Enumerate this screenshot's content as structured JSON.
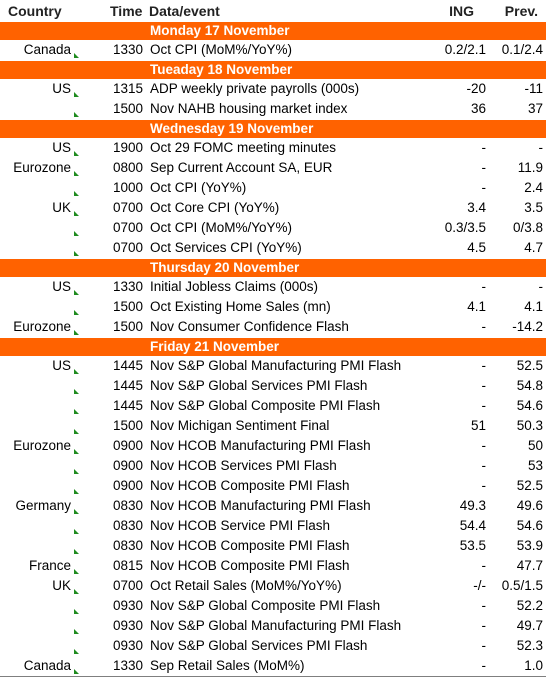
{
  "header": {
    "country": "Country",
    "time": "Time",
    "event": "Data/event",
    "ing": "ING",
    "prev": "Prev."
  },
  "theme": {
    "band_color": "#ff6200",
    "band_text": "#ffffff",
    "marker_color": "#1f8b1f"
  },
  "sections": [
    {
      "day": "Monday 17 November",
      "rows": [
        {
          "country": "Canada",
          "time": "1330",
          "event": "Oct CPI (MoM%/YoY%)",
          "ing": "0.2/2.1",
          "prev": "0.1/2.4"
        }
      ]
    },
    {
      "day": "Tueaday 18 November",
      "rows": [
        {
          "country": "US",
          "time": "1315",
          "event": "ADP weekly private payrolls (000s)",
          "ing": "-20",
          "prev": "-11"
        },
        {
          "country": "",
          "time": "1500",
          "event": "Nov NAHB housing market index",
          "ing": "36",
          "prev": "37"
        }
      ]
    },
    {
      "day": "Wednesday 19 November",
      "rows": [
        {
          "country": "US",
          "time": "1900",
          "event": "Oct 29 FOMC meeting minutes",
          "ing": "-",
          "prev": "-"
        },
        {
          "country": "Eurozone",
          "time": "0800",
          "event": "Sep Current Account SA, EUR",
          "ing": "-",
          "prev": "11.9"
        },
        {
          "country": "",
          "time": "1000",
          "event": "Oct CPI (YoY%)",
          "ing": "-",
          "prev": "2.4"
        },
        {
          "country": "UK",
          "time": "0700",
          "event": "Oct Core CPI (YoY%)",
          "ing": "3.4",
          "prev": "3.5"
        },
        {
          "country": "",
          "time": "0700",
          "event": "Oct CPI (MoM%/YoY%)",
          "ing": "0.3/3.5",
          "prev": "0/3.8"
        },
        {
          "country": "",
          "time": "0700",
          "event": "Oct Services CPI (YoY%)",
          "ing": "4.5",
          "prev": "4.7"
        }
      ]
    },
    {
      "day": "Thursday 20 November",
      "rows": [
        {
          "country": "US",
          "time": "1330",
          "event": "Initial Jobless Claims (000s)",
          "ing": "-",
          "prev": "-"
        },
        {
          "country": "",
          "time": "1500",
          "event": "Oct Existing Home Sales (mn)",
          "ing": "4.1",
          "prev": "4.1"
        },
        {
          "country": "Eurozone",
          "time": "1500",
          "event": "Nov Consumer Confidence Flash",
          "ing": "-",
          "prev": "-14.2"
        }
      ]
    },
    {
      "day": "Friday 21 November",
      "rows": [
        {
          "country": "US",
          "time": "1445",
          "event": "Nov S&P Global Manufacturing PMI Flash",
          "ing": "-",
          "prev": "52.5"
        },
        {
          "country": "",
          "time": "1445",
          "event": "Nov S&P Global Services PMI Flash",
          "ing": "-",
          "prev": "54.8"
        },
        {
          "country": "",
          "time": "1445",
          "event": "Nov S&P Global Composite PMI Flash",
          "ing": "-",
          "prev": "54.6"
        },
        {
          "country": "",
          "time": "1500",
          "event": "Nov Michigan Sentiment Final",
          "ing": "51",
          "prev": "50.3"
        },
        {
          "country": "Eurozone",
          "time": "0900",
          "event": "Nov HCOB Manufacturing PMI Flash",
          "ing": "-",
          "prev": "50"
        },
        {
          "country": "",
          "time": "0900",
          "event": "Nov HCOB Services PMI Flash",
          "ing": "-",
          "prev": "53"
        },
        {
          "country": "",
          "time": "0900",
          "event": "Nov HCOB Composite PMI Flash",
          "ing": "-",
          "prev": "52.5"
        },
        {
          "country": "Germany",
          "time": "0830",
          "event": "Nov HCOB Manufacturing PMI Flash",
          "ing": "49.3",
          "prev": "49.6"
        },
        {
          "country": "",
          "time": "0830",
          "event": "Nov HCOB Service PMI Flash",
          "ing": "54.4",
          "prev": "54.6"
        },
        {
          "country": "",
          "time": "0830",
          "event": "Nov HCOB Composite PMI Flash",
          "ing": "53.5",
          "prev": "53.9"
        },
        {
          "country": "France",
          "time": "0815",
          "event": "Nov HCOB Composite PMI Flash",
          "ing": "-",
          "prev": "47.7"
        },
        {
          "country": "UK",
          "time": "0700",
          "event": "Oct Retail Sales (MoM%/YoY%)",
          "ing": "-/-",
          "prev": "0.5/1.5"
        },
        {
          "country": "",
          "time": "0930",
          "event": "Nov S&P Global Composite PMI Flash",
          "ing": "-",
          "prev": "52.2"
        },
        {
          "country": "",
          "time": "0930",
          "event": "Nov S&P Global Manufacturing PMI Flash",
          "ing": "-",
          "prev": "49.7"
        },
        {
          "country": "",
          "time": "0930",
          "event": "Nov S&P Global Services PMI Flash",
          "ing": "-",
          "prev": "52.3"
        },
        {
          "country": "Canada",
          "time": "1330",
          "event": "Sep Retail Sales (MoM%)",
          "ing": "-",
          "prev": "1.0"
        }
      ]
    }
  ]
}
